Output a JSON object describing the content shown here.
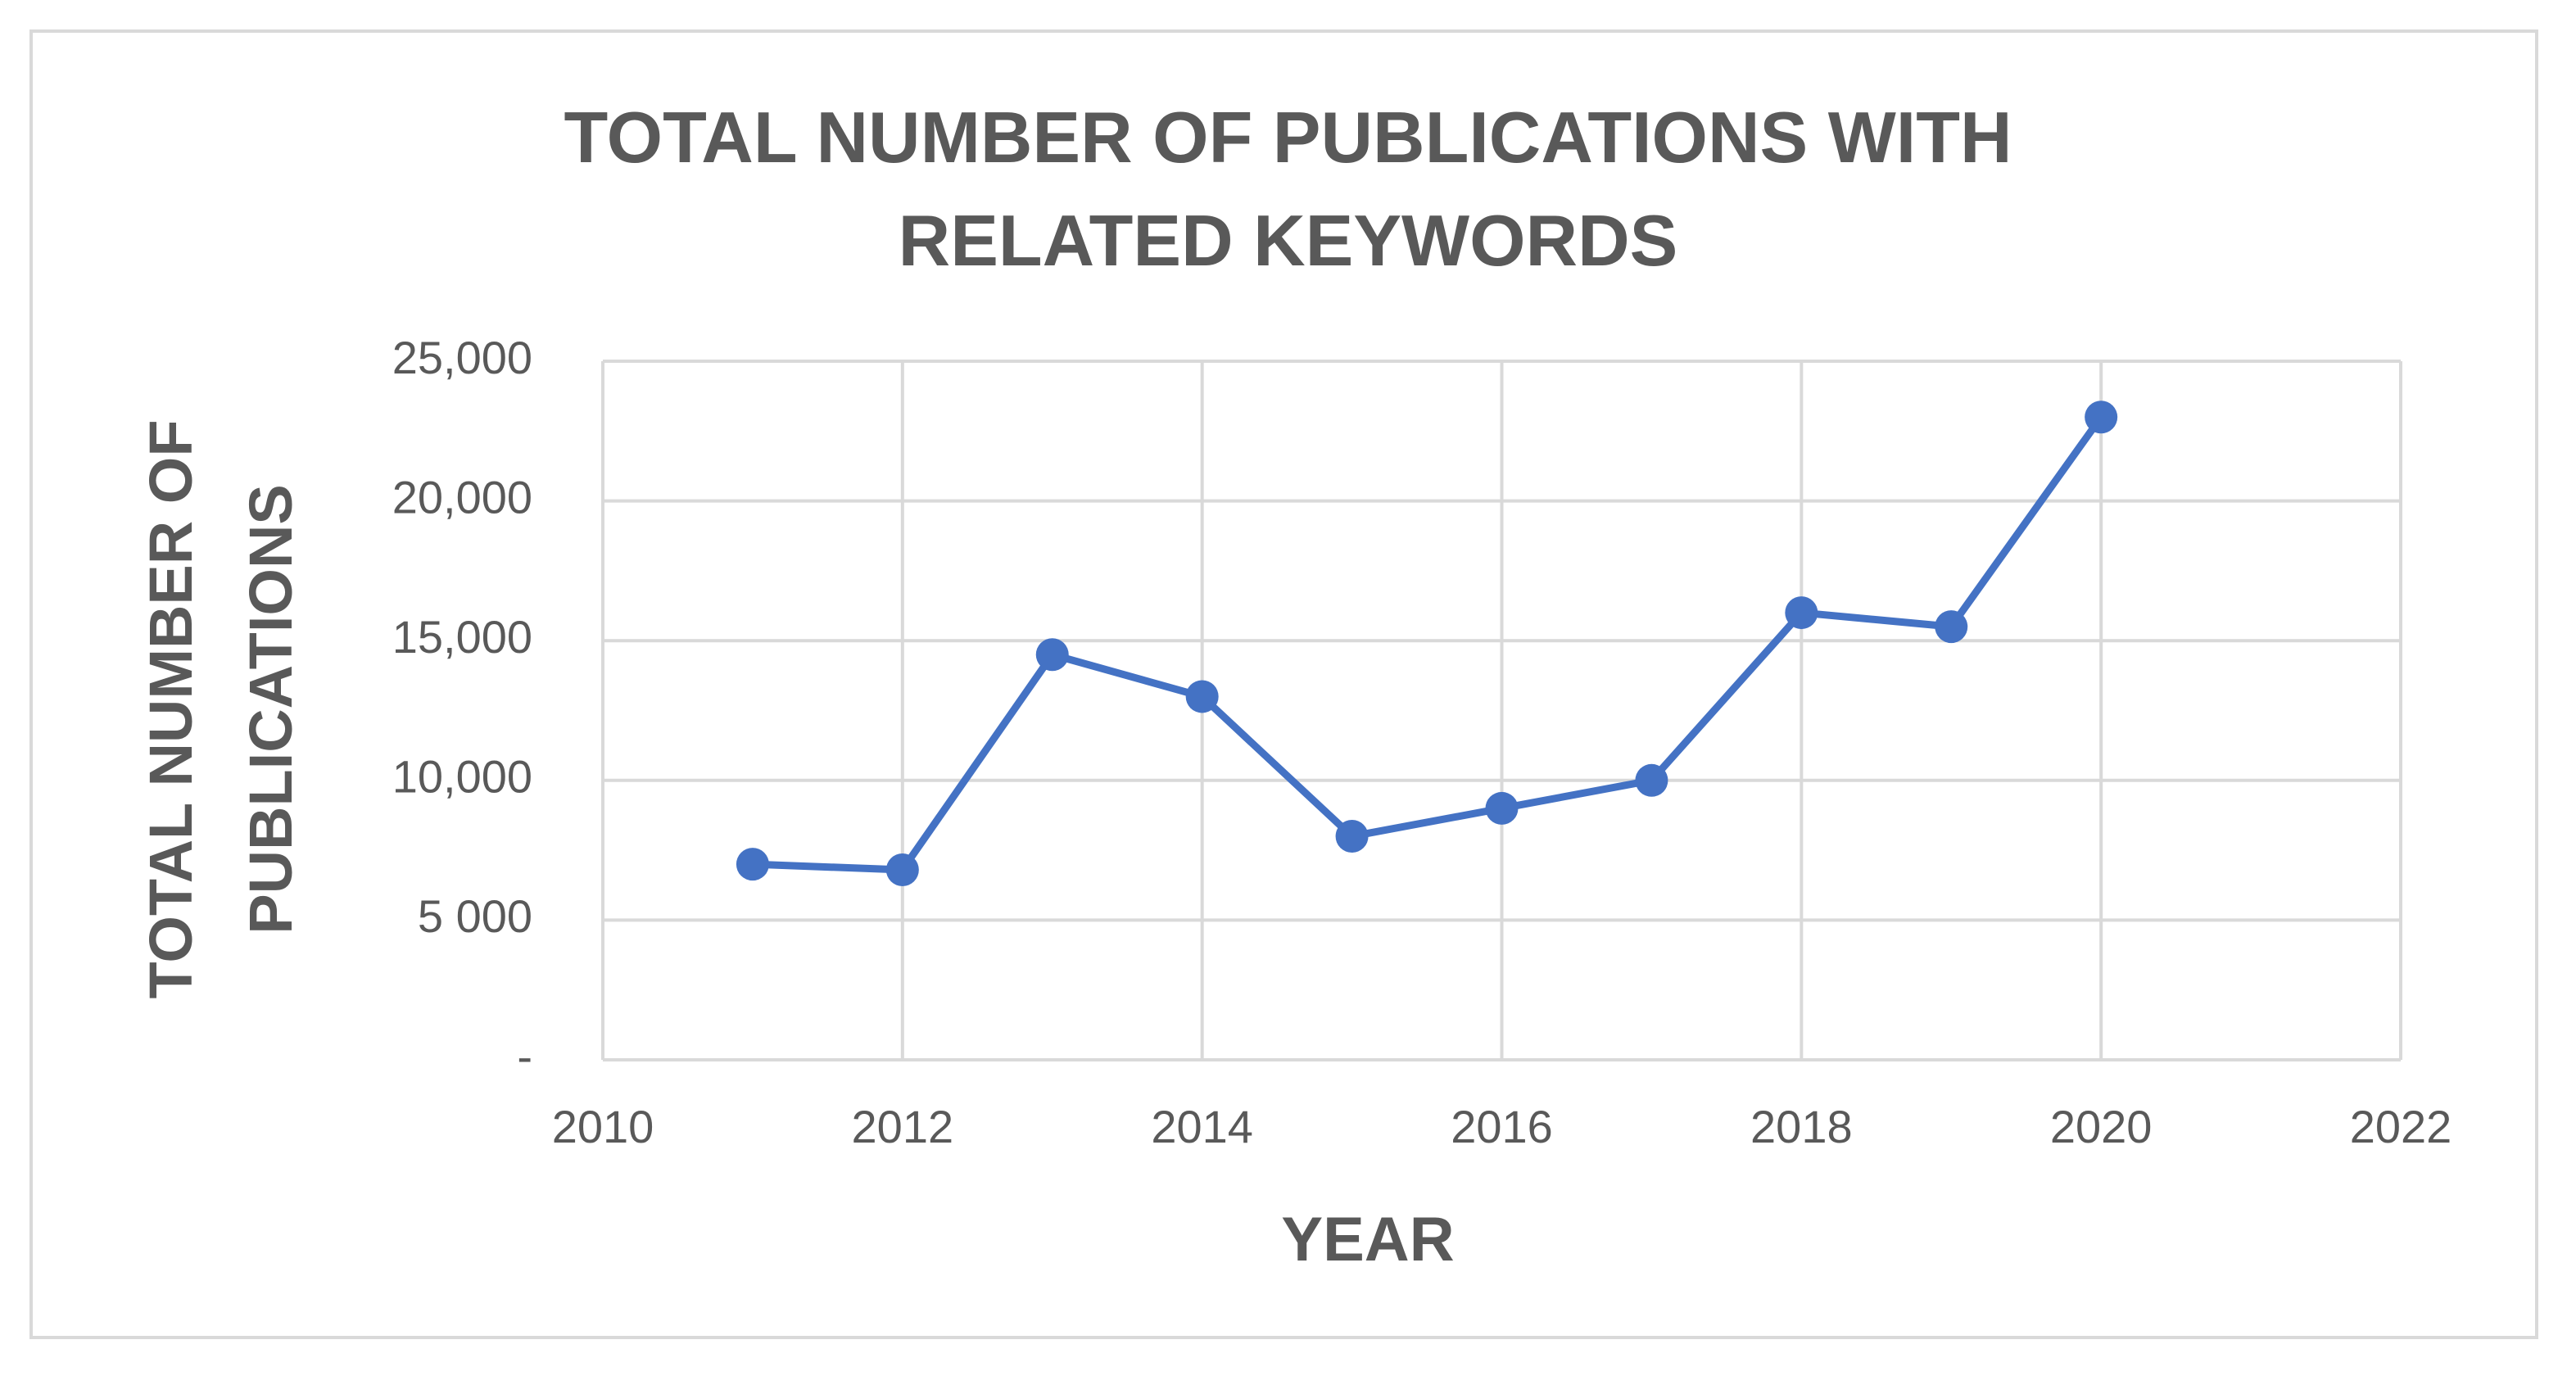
{
  "chart_data": {
    "type": "line",
    "title": "TOTAL NUMBER OF PUBLICATIONS WITH RELATED KEYWORDS",
    "x_label": "YEAR",
    "y_label": "TOTAL NUMBER OF PUBLICATIONS",
    "x": [
      2011,
      2012,
      2013,
      2014,
      2015,
      2016,
      2017,
      2018,
      2019,
      2020
    ],
    "values": [
      7000,
      6800,
      14500,
      13000,
      8000,
      9000,
      10000,
      16000,
      15500,
      23000
    ],
    "color": "#4472c4",
    "xlim": [
      2010,
      2022
    ],
    "xticks": [
      2010,
      2012,
      2014,
      2016,
      2018,
      2020,
      2022
    ],
    "ylim": [
      0,
      25000
    ],
    "yticks": [
      {
        "value": 0,
        "label": "-"
      },
      {
        "value": 5000,
        "label": "5 000"
      },
      {
        "value": 10000,
        "label": "10,000"
      },
      {
        "value": 15000,
        "label": "15,000"
      },
      {
        "value": 20000,
        "label": "20,000"
      },
      {
        "value": 25000,
        "label": "25,000"
      }
    ],
    "grid": true
  }
}
